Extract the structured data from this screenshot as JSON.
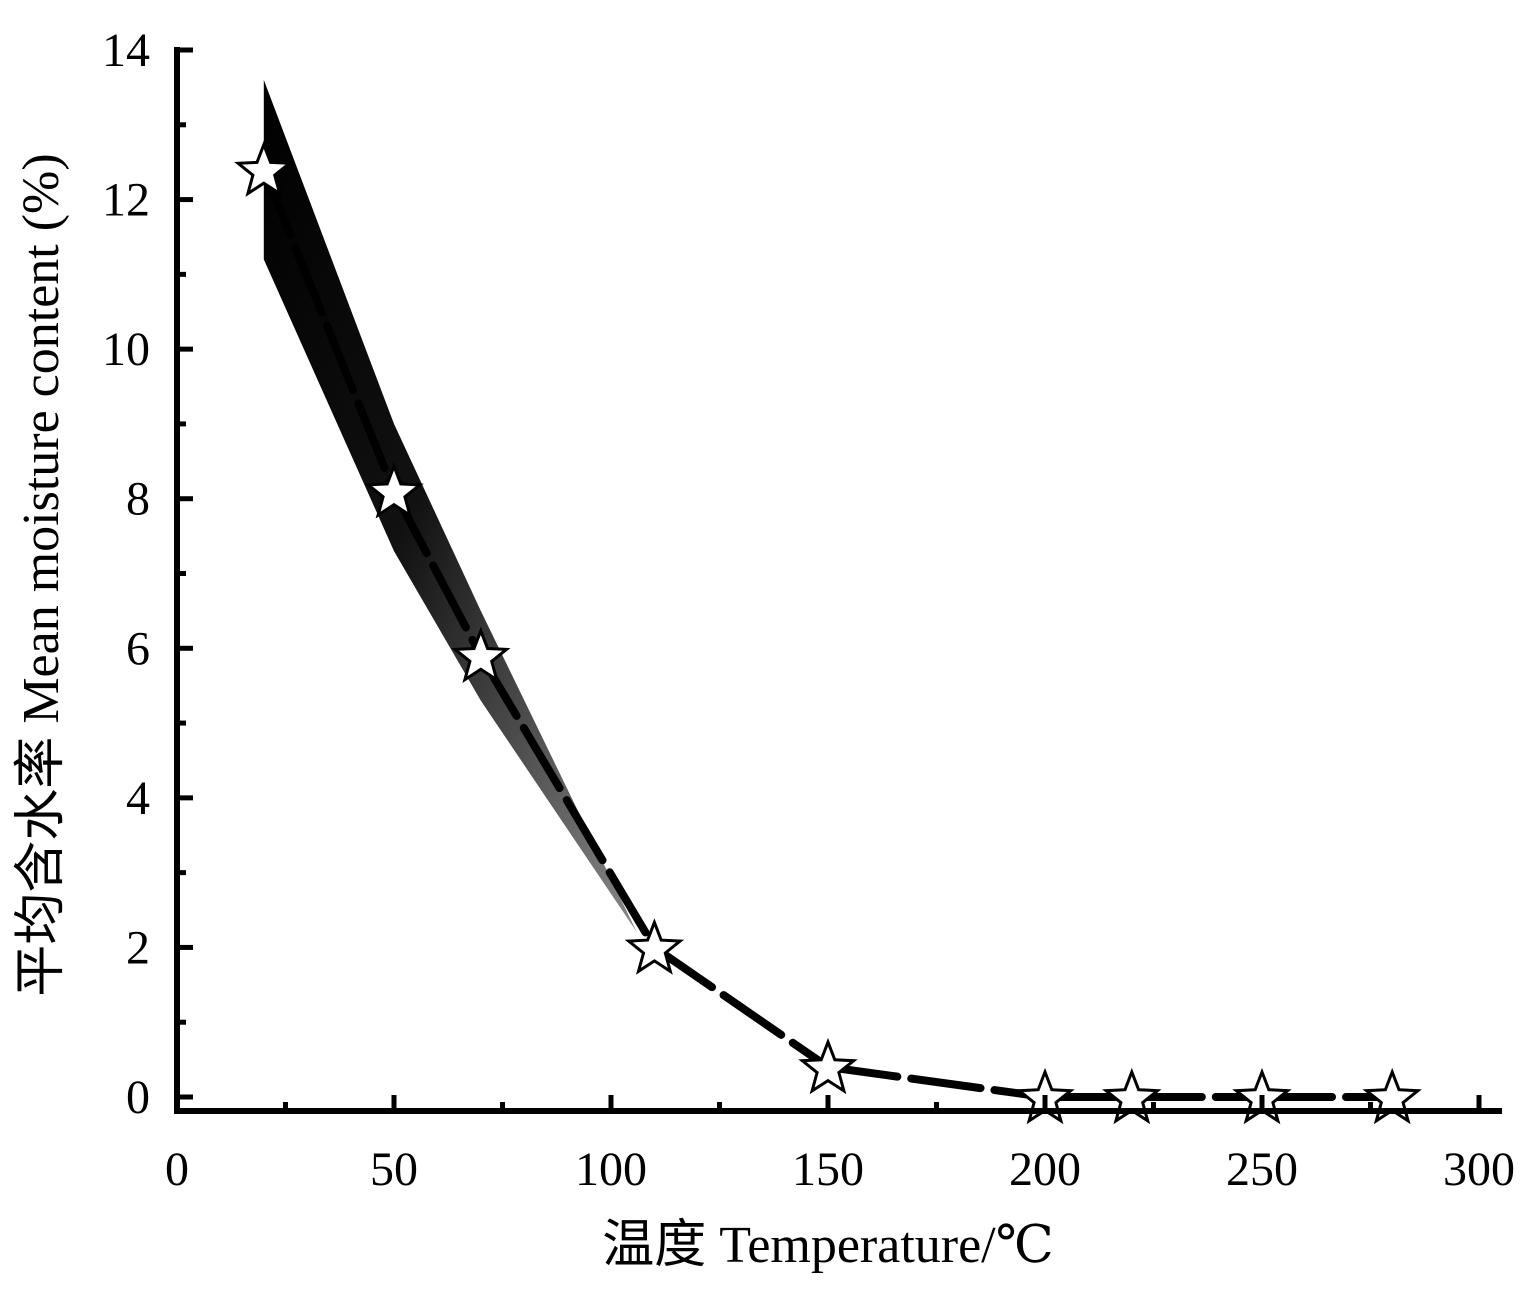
{
  "chart_data": {
    "type": "line",
    "xlabel": "温度  Temperature/℃",
    "ylabel": "平均含水率  Mean moisture content (%)",
    "xlim": [
      0,
      300
    ],
    "ylim": [
      0,
      14
    ],
    "x_ticks": [
      0,
      50,
      100,
      150,
      200,
      250,
      300
    ],
    "y_ticks": [
      0,
      2,
      4,
      6,
      8,
      10,
      12,
      14
    ],
    "grid": false,
    "series": [
      {
        "marker": "star",
        "line_style": "dash",
        "color": "#000000",
        "x": [
          20,
          50,
          70,
          110,
          150,
          200,
          220,
          250,
          280
        ],
        "y": [
          12.4,
          8.1,
          5.9,
          2.0,
          0.4,
          0.0,
          0.0,
          0.0,
          0.0
        ],
        "band_upper": [
          13.6,
          9.0,
          6.5,
          2.2
        ],
        "band_lower": [
          11.2,
          7.3,
          5.3,
          2.2
        ],
        "band_x": [
          20,
          50,
          70,
          106
        ]
      }
    ]
  }
}
